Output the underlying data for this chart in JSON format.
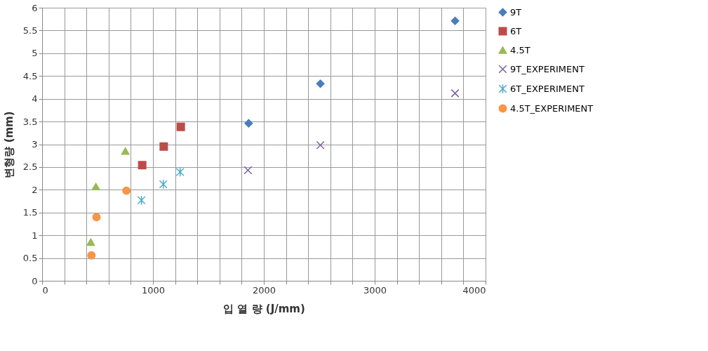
{
  "chart_data": {
    "type": "scatter",
    "xlabel": "입 열 량 (J/mm)",
    "ylabel": "변형량 (mm)",
    "xlim": [
      0,
      4000
    ],
    "ylim": [
      0,
      6
    ],
    "xticks": [
      0,
      {
        "value": 200,
        "label": null
      },
      {
        "value": 400,
        "label": null
      },
      {
        "value": 600,
        "label": null
      },
      {
        "value": 800,
        "label": null
      },
      1000,
      {
        "value": 1200,
        "label": null
      },
      {
        "value": 1400,
        "label": null
      },
      {
        "value": 1600,
        "label": null
      },
      {
        "value": 1800,
        "label": null
      },
      2000,
      {
        "value": 2200,
        "label": null
      },
      {
        "value": 2400,
        "label": null
      },
      {
        "value": 2600,
        "label": null
      },
      {
        "value": 2800,
        "label": null
      },
      3000,
      {
        "value": 3200,
        "label": null
      },
      {
        "value": 3400,
        "label": null
      },
      {
        "value": 3600,
        "label": null
      },
      {
        "value": 3800,
        "label": null
      },
      4000
    ],
    "yticks": [
      0,
      0.5,
      1,
      1.5,
      2,
      2.5,
      3,
      3.5,
      4,
      4.5,
      5,
      5.5,
      6
    ],
    "grid": true,
    "legend": "right",
    "series": [
      {
        "name": "9T",
        "color": "#4a7ebb",
        "marker": "diamond",
        "x": [
          1863,
          2510,
          3725
        ],
        "values": [
          3.46,
          4.33,
          5.71
        ]
      },
      {
        "name": "6T",
        "color": "#be4b48",
        "marker": "square",
        "x": [
          903,
          1097,
          1251
        ],
        "values": [
          2.54,
          2.95,
          3.38
        ]
      },
      {
        "name": "4.5T",
        "color": "#98b954",
        "marker": "triangle",
        "x": [
          439,
          485,
          751
        ],
        "values": [
          0.85,
          2.07,
          2.85
        ]
      },
      {
        "name": "9T_EXPERIMENT",
        "color": "#7d60a0",
        "marker": "cross",
        "x": [
          1857,
          2510,
          3725
        ],
        "values": [
          2.43,
          2.98,
          4.12
        ]
      },
      {
        "name": "6T_EXPERIMENT",
        "color": "#4bacc6",
        "x": [
          896,
          1093,
          1245
        ],
        "values": [
          1.77,
          2.12,
          2.39
        ]
      },
      {
        "name": "4.5T_EXPERIMENT",
        "color": "#f79646",
        "marker": "circle",
        "x": [
          445,
          491,
          761
        ],
        "values": [
          0.56,
          1.4,
          1.98
        ]
      }
    ]
  }
}
